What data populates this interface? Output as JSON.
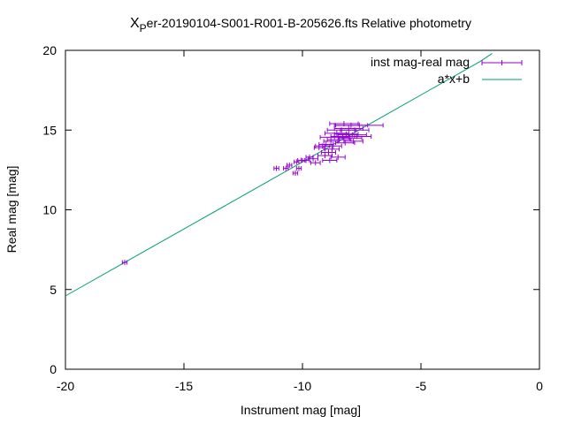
{
  "chart_data": {
    "type": "scatter",
    "title_prefix": "X",
    "title_subscript": "P",
    "title_rest": "er-20190104-S001-R001-B-205626.fts Relative photometry",
    "xlabel": "Instrument mag [mag]",
    "ylabel": "Real mag [mag]",
    "xlim": [
      -20,
      0
    ],
    "ylim": [
      0,
      20
    ],
    "xticks": [
      -20,
      -15,
      -10,
      -5,
      0
    ],
    "yticks": [
      0,
      5,
      10,
      15,
      20
    ],
    "xtick_labels": [
      "-20",
      "-15",
      "-10",
      "-5",
      "0"
    ],
    "ytick_labels": [
      "0",
      "5",
      "10",
      "15",
      "20"
    ],
    "grid": false,
    "legend_position": "top-right",
    "colors": {
      "points": "#9400d3",
      "fit": "#009e73",
      "axes": "#000000"
    },
    "series": [
      {
        "name": "inst mag-real mag",
        "kind": "points-with-xerror",
        "points": [
          {
            "x": -17.5,
            "y": 6.7,
            "xerr": 0.1
          },
          {
            "x": -11.1,
            "y": 12.6,
            "xerr": 0.1
          },
          {
            "x": -10.7,
            "y": 12.6,
            "xerr": 0.1
          },
          {
            "x": -10.55,
            "y": 12.8,
            "xerr": 0.1
          },
          {
            "x": -10.3,
            "y": 12.3,
            "xerr": 0.1
          },
          {
            "x": -10.25,
            "y": 13.0,
            "xerr": 0.1
          },
          {
            "x": -10.15,
            "y": 12.6,
            "xerr": 0.1
          },
          {
            "x": -10.05,
            "y": 13.1,
            "xerr": 0.15
          },
          {
            "x": -9.85,
            "y": 13.1,
            "xerr": 0.15
          },
          {
            "x": -9.7,
            "y": 13.3,
            "xerr": 0.15
          },
          {
            "x": -9.55,
            "y": 13.2,
            "xerr": 0.2
          },
          {
            "x": -9.45,
            "y": 12.95,
            "xerr": 0.2
          },
          {
            "x": -9.3,
            "y": 13.9,
            "xerr": 0.2
          },
          {
            "x": -9.15,
            "y": 14.0,
            "xerr": 0.3
          },
          {
            "x": -9.05,
            "y": 13.4,
            "xerr": 0.3
          },
          {
            "x": -9.0,
            "y": 14.1,
            "xerr": 0.3
          },
          {
            "x": -8.9,
            "y": 13.6,
            "xerr": 0.3
          },
          {
            "x": -8.85,
            "y": 13.1,
            "xerr": 0.3
          },
          {
            "x": -8.8,
            "y": 14.3,
            "xerr": 0.3
          },
          {
            "x": -8.75,
            "y": 13.8,
            "xerr": 0.3
          },
          {
            "x": -8.7,
            "y": 14.0,
            "xerr": 0.35
          },
          {
            "x": -8.65,
            "y": 14.55,
            "xerr": 0.6
          },
          {
            "x": -8.55,
            "y": 14.8,
            "xerr": 0.5
          },
          {
            "x": -8.5,
            "y": 13.3,
            "xerr": 0.3
          },
          {
            "x": -8.45,
            "y": 14.4,
            "xerr": 0.5
          },
          {
            "x": -8.35,
            "y": 15.0,
            "xerr": 0.6
          },
          {
            "x": -8.3,
            "y": 14.6,
            "xerr": 0.5
          },
          {
            "x": -8.25,
            "y": 15.4,
            "xerr": 0.6
          },
          {
            "x": -8.2,
            "y": 14.2,
            "xerr": 0.4
          },
          {
            "x": -8.15,
            "y": 14.75,
            "xerr": 0.5
          },
          {
            "x": -8.05,
            "y": 15.1,
            "xerr": 0.6
          },
          {
            "x": -8.0,
            "y": 14.5,
            "xerr": 0.5
          },
          {
            "x": -7.95,
            "y": 15.3,
            "xerr": 0.7
          },
          {
            "x": -7.9,
            "y": 14.7,
            "xerr": 0.6
          },
          {
            "x": -7.85,
            "y": 14.3,
            "xerr": 0.4
          },
          {
            "x": -7.8,
            "y": 15.0,
            "xerr": 0.6
          },
          {
            "x": -7.7,
            "y": 14.6,
            "xerr": 0.6
          },
          {
            "x": -7.6,
            "y": 15.3,
            "xerr": 1.0
          }
        ]
      },
      {
        "name": "a*x+b",
        "kind": "line",
        "x": [
          -20,
          -17.5,
          -15,
          -12.5,
          -10,
          -7.5,
          -5,
          -2.5,
          -2.0
        ],
        "y": [
          4.6,
          6.7,
          8.8,
          10.9,
          13.0,
          15.1,
          17.2,
          19.3,
          19.8
        ]
      }
    ]
  }
}
